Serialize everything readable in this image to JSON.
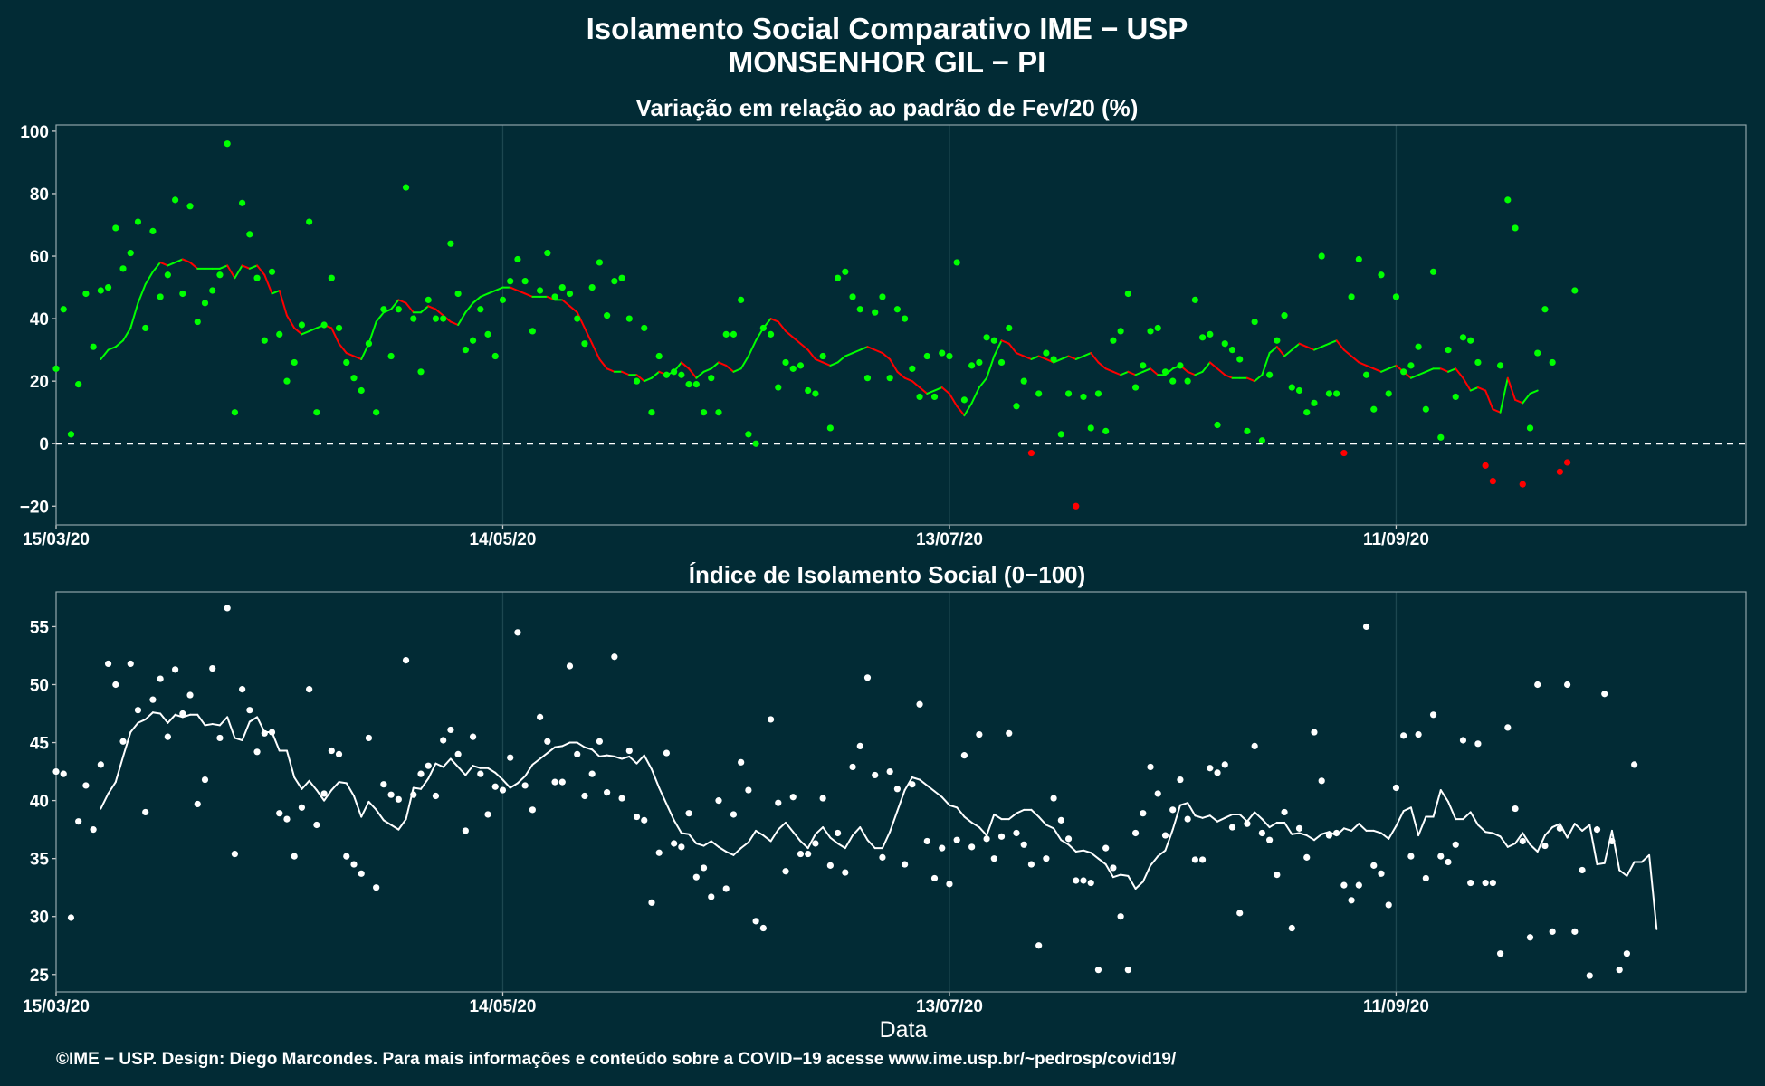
{
  "title_line1": "Isolamento Social Comparativo IME − USP",
  "title_line2": "MONSENHOR GIL − PI",
  "xlabel": "Data",
  "caption": "©IME − USP. Design: Diego Marcondes. Para mais informações e conteúdo sobre a COVID−19 acesse www.ime.usp.br/~pedrosp/covid19/",
  "colors": {
    "background": "#022b35",
    "positive": "#00ff00",
    "negative": "#ff0000",
    "index": "#ffffff",
    "grid": "#1d4750"
  },
  "chart_data": [
    {
      "type": "scatter",
      "title": "Variação em relação ao padrão de Fev/20 (%)",
      "x_range": [
        "2020-03-15",
        "2020-10-28"
      ],
      "x_ticks": [
        "15/03/20",
        "14/05/20",
        "13/07/20",
        "11/09/20"
      ],
      "ylim": [
        -26,
        102
      ],
      "y_ticks": [
        100,
        80,
        60,
        40,
        20,
        0,
        -20
      ],
      "reference_line": 0,
      "series": [
        {
          "type": "scatter",
          "start_date": "2020-03-15",
          "values": [
            24,
            43,
            3,
            19,
            48,
            31,
            49,
            50,
            69,
            56,
            61,
            71,
            37,
            68,
            47,
            54,
            78,
            48,
            76,
            39,
            45,
            49,
            54,
            96,
            10,
            77,
            67,
            53,
            33,
            55,
            35,
            20,
            26,
            38,
            71,
            10,
            38,
            53,
            37,
            26,
            21,
            17,
            32,
            10,
            43,
            28,
            43,
            82,
            40,
            23,
            46,
            40,
            40,
            64,
            48,
            30,
            33,
            43,
            35,
            28,
            46,
            52,
            59,
            52,
            36,
            49,
            61,
            47,
            50,
            48,
            40,
            32,
            50,
            58,
            41,
            52,
            53,
            40,
            20,
            37,
            10,
            28,
            22,
            23,
            22,
            19,
            19,
            10,
            21,
            10,
            35,
            35,
            46,
            3,
            0,
            37,
            35,
            18,
            26,
            24,
            25,
            17,
            16,
            28,
            5,
            53,
            55,
            47,
            43,
            21,
            42,
            47,
            21,
            43,
            40,
            24,
            15,
            28,
            15,
            29,
            28,
            58,
            14,
            25,
            26,
            34,
            33,
            26,
            37,
            12,
            20,
            -3,
            16,
            29,
            27,
            3,
            16,
            -20,
            15,
            5,
            16,
            4,
            33,
            36,
            48,
            18,
            25,
            36,
            37,
            23,
            20,
            25,
            20,
            46,
            34,
            35,
            6,
            32,
            30,
            27,
            4,
            39,
            1,
            22,
            33,
            41,
            18,
            17,
            10,
            13,
            60,
            16,
            16,
            -3,
            47,
            59,
            22,
            11,
            54,
            16,
            47,
            23,
            25,
            31,
            11,
            55,
            2,
            30,
            15,
            34,
            33,
            26,
            -7,
            -12,
            25,
            78,
            69,
            -13,
            5,
            29,
            43,
            26,
            -9,
            -6,
            49
          ]
        },
        {
          "type": "line",
          "name": "média móvel",
          "start_date": "2020-03-21",
          "values": [
            27,
            30,
            31,
            33,
            37,
            45,
            51,
            55,
            58,
            57,
            58,
            59,
            58,
            56,
            56,
            56,
            56,
            57,
            53,
            57,
            56,
            57,
            54,
            48,
            49,
            41,
            37,
            35,
            36,
            37,
            38,
            37,
            32,
            29,
            28,
            27,
            32,
            39,
            42,
            43,
            46,
            45,
            42,
            42,
            44,
            43,
            41,
            39,
            38,
            42,
            45,
            47,
            48,
            49,
            50,
            50,
            49,
            48,
            47,
            47,
            47,
            46,
            46,
            44,
            42,
            37,
            32,
            27,
            24,
            23,
            23,
            22,
            22,
            20,
            21,
            23,
            22,
            23,
            26,
            24,
            21,
            23,
            24,
            26,
            25,
            23,
            24,
            28,
            33,
            37,
            40,
            39,
            36,
            34,
            32,
            30,
            27,
            26,
            25,
            26,
            28,
            29,
            30,
            31,
            30,
            29,
            27,
            23,
            21,
            20,
            18,
            16,
            17,
            18,
            16,
            12,
            9,
            13,
            18,
            21,
            28,
            33,
            32,
            29,
            28,
            27,
            28,
            27,
            26,
            27,
            28,
            27,
            28,
            29,
            26,
            24,
            23,
            22,
            23,
            22,
            23,
            24,
            22,
            22,
            24,
            25,
            23,
            22,
            23,
            26,
            24,
            22,
            21,
            21,
            21,
            20,
            22,
            29,
            31,
            28,
            30,
            32,
            31,
            30,
            31,
            32,
            33,
            30,
            28,
            26,
            25,
            24,
            23,
            24,
            25,
            23,
            21,
            22,
            23,
            24,
            24,
            23,
            24,
            21,
            17,
            18,
            17,
            11,
            10,
            21,
            14,
            13,
            16,
            17
          ]
        }
      ]
    },
    {
      "type": "scatter",
      "title": "Índice de Isolamento Social (0−100)",
      "x_range": [
        "2020-03-15",
        "2020-10-28"
      ],
      "x_ticks": [
        "15/03/20",
        "14/05/20",
        "13/07/20",
        "11/09/20"
      ],
      "ylim": [
        23.5,
        58
      ],
      "y_ticks": [
        55,
        50,
        45,
        40,
        35,
        30,
        25
      ],
      "series": [
        {
          "type": "scatter",
          "start_date": "2020-03-15",
          "values": [
            42.5,
            42.3,
            29.9,
            38.2,
            41.3,
            37.5,
            43.1,
            51.8,
            50.0,
            45.1,
            51.8,
            47.8,
            39.0,
            48.7,
            50.5,
            45.5,
            51.3,
            47.5,
            49.1,
            39.7,
            41.8,
            51.4,
            45.4,
            56.6,
            35.4,
            49.6,
            47.8,
            44.2,
            45.8,
            45.9,
            38.9,
            38.4,
            35.2,
            39.4,
            49.6,
            37.9,
            40.6,
            44.3,
            44.0,
            35.2,
            34.5,
            33.7,
            45.4,
            32.5,
            41.4,
            40.5,
            40.1,
            52.1,
            40.5,
            42.3,
            43.0,
            40.4,
            45.2,
            46.1,
            44.0,
            37.4,
            45.5,
            42.3,
            38.8,
            41.2,
            40.9,
            43.7,
            54.5,
            41.3,
            39.2,
            47.2,
            45.1,
            41.6,
            41.6,
            51.6,
            44.0,
            40.4,
            42.3,
            45.1,
            40.7,
            52.4,
            40.2,
            44.3,
            38.6,
            38.3,
            31.2,
            35.5,
            44.1,
            36.3,
            36.0,
            38.9,
            33.4,
            34.2,
            31.7,
            40.0,
            32.4,
            38.8,
            43.3,
            40.9,
            29.6,
            29.0,
            47.0,
            39.8,
            33.9,
            40.3,
            35.4,
            35.4,
            36.3,
            40.2,
            34.4,
            37.2,
            33.8,
            42.9,
            44.7,
            50.6,
            42.2,
            35.1,
            42.5,
            41.0,
            34.5,
            41.4,
            48.3,
            36.5,
            33.3,
            35.9,
            32.8,
            36.6,
            43.9,
            36.0,
            45.7,
            36.7,
            35.0,
            36.9,
            45.8,
            37.2,
            36.2,
            34.5,
            27.5,
            35.0,
            40.2,
            38.3,
            36.7,
            33.1,
            33.1,
            32.9,
            25.4,
            35.9,
            34.2,
            30.0,
            25.4,
            37.2,
            38.9,
            42.9,
            40.6,
            37.0,
            39.2,
            41.8,
            38.4,
            34.9,
            34.9,
            42.8,
            42.4,
            43.1,
            37.7,
            30.3,
            38.0,
            44.7,
            37.2,
            36.6,
            33.6,
            39.0,
            29.0,
            37.6,
            35.1,
            45.9,
            41.7,
            37.0,
            37.2,
            32.7,
            31.4,
            32.7,
            55.0,
            34.4,
            33.7,
            31.0,
            41.1,
            45.6,
            35.2,
            45.7,
            33.3,
            47.4,
            35.2,
            34.7,
            36.2,
            45.2,
            32.9,
            44.9,
            32.9,
            32.9,
            26.8,
            46.3,
            39.3,
            36.5,
            28.2,
            50.0,
            36.1,
            28.7,
            37.6,
            50.0,
            28.7,
            34.0,
            24.9,
            37.5,
            49.2,
            36.5,
            25.4,
            26.8,
            43.1
          ]
        },
        {
          "type": "line",
          "name": "média móvel",
          "start_date": "2020-03-21",
          "values": [
            39.3,
            40.6,
            41.6,
            43.8,
            45.9,
            46.7,
            47.0,
            47.6,
            47.5,
            46.7,
            47.4,
            47.2,
            47.4,
            47.4,
            46.5,
            46.6,
            46.5,
            47.2,
            45.4,
            45.2,
            46.8,
            47.2,
            45.9,
            45.9,
            44.3,
            44.3,
            42.0,
            41.0,
            41.7,
            40.9,
            40.0,
            40.9,
            41.6,
            41.5,
            40.4,
            38.6,
            39.9,
            39.2,
            38.3,
            37.9,
            37.5,
            38.4,
            41.1,
            41.0,
            41.9,
            43.2,
            42.9,
            43.6,
            42.9,
            42.2,
            43.0,
            42.8,
            42.8,
            42.4,
            41.8,
            41.1,
            41.5,
            42.1,
            43.1,
            43.6,
            44.1,
            44.6,
            44.7,
            45.0,
            45.0,
            44.6,
            44.4,
            43.8,
            43.9,
            43.8,
            43.6,
            43.8,
            43.2,
            43.9,
            42.7,
            41.1,
            39.7,
            38.3,
            37.2,
            37.1,
            36.3,
            36.1,
            36.5,
            36.0,
            35.6,
            35.3,
            35.9,
            36.4,
            37.4,
            37.0,
            36.5,
            37.5,
            38.1,
            37.3,
            36.5,
            35.9,
            37.1,
            37.7,
            36.8,
            36.3,
            35.9,
            37.0,
            37.7,
            36.6,
            35.9,
            35.9,
            37.3,
            39.1,
            40.9,
            42.0,
            41.8,
            41.3,
            40.8,
            40.3,
            39.6,
            39.4,
            38.6,
            38.1,
            37.7,
            37.0,
            38.8,
            38.4,
            38.4,
            38.9,
            39.2,
            39.2,
            38.6,
            37.9,
            37.6,
            36.6,
            36.2,
            35.6,
            35.7,
            35.5,
            35.0,
            34.5,
            33.4,
            33.6,
            33.5,
            32.4,
            33.0,
            34.4,
            35.2,
            35.7,
            37.5,
            39.6,
            39.8,
            38.7,
            38.5,
            38.7,
            38.2,
            38.5,
            38.8,
            38.8,
            38.2,
            39.0,
            38.4,
            37.7,
            38.1,
            38.1,
            37.1,
            37.2,
            37.0,
            36.6,
            37.1,
            37.3,
            37.0,
            37.6,
            37.4,
            38.0,
            37.4,
            37.4,
            37.2,
            36.7,
            37.8,
            39.1,
            39.4,
            37.0,
            38.6,
            38.6,
            40.9,
            39.9,
            38.4,
            38.4,
            39.0,
            37.9,
            37.3,
            37.2,
            36.9,
            36.0,
            36.3,
            37.2,
            36.2,
            35.6,
            37.0,
            37.7,
            38.0,
            36.8,
            38.0,
            37.4,
            37.9,
            34.5,
            34.6,
            37.4,
            34.0,
            33.5,
            34.7,
            34.7,
            35.3,
            28.9
          ]
        }
      ]
    }
  ]
}
